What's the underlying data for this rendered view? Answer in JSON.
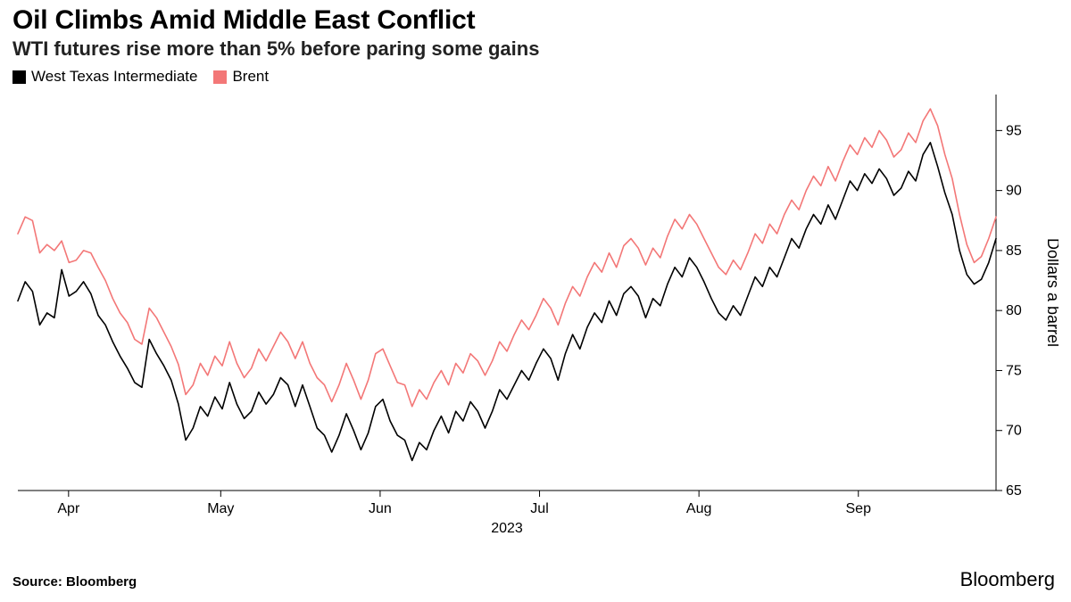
{
  "title": "Oil Climbs Amid Middle East Conflict",
  "subtitle": "WTI futures rise more than 5% before paring some gains",
  "source_label": "Source: Bloomberg",
  "brand": "Bloomberg",
  "legend": {
    "items": [
      {
        "label": "West Texas Intermediate",
        "color": "#000000"
      },
      {
        "label": "Brent",
        "color": "#f37777"
      }
    ]
  },
  "chart": {
    "type": "line",
    "background_color": "#ffffff",
    "axis_color": "#000000",
    "tick_length": 7,
    "y_axis_side": "right",
    "y_axis_title": "Dollars a barrel",
    "ylim": [
      65,
      98
    ],
    "yticks": [
      65,
      70,
      75,
      80,
      85,
      90,
      95
    ],
    "xlim": [
      0,
      135
    ],
    "xticks": [
      {
        "pos": 7,
        "label": "Apr"
      },
      {
        "pos": 28,
        "label": "May"
      },
      {
        "pos": 50,
        "label": "Jun"
      },
      {
        "pos": 72,
        "label": "Jul"
      },
      {
        "pos": 94,
        "label": "Aug"
      },
      {
        "pos": 116,
        "label": "Sep"
      }
    ],
    "x_axis_year": "2023",
    "line_width": 1.6,
    "axis_fontsize": 16,
    "title_fontsize": 30,
    "subtitle_fontsize": 22,
    "series": [
      {
        "name": "Brent",
        "color": "#f37777",
        "values": [
          86.4,
          87.8,
          87.5,
          84.8,
          85.5,
          85.0,
          85.8,
          84.0,
          84.2,
          85.0,
          84.8,
          83.6,
          82.5,
          81.0,
          79.8,
          79.0,
          77.6,
          77.2,
          80.2,
          79.4,
          78.2,
          77.0,
          75.5,
          73.0,
          73.8,
          75.6,
          74.6,
          76.2,
          75.4,
          77.4,
          75.6,
          74.4,
          75.2,
          76.8,
          75.8,
          77.0,
          78.2,
          77.4,
          76.0,
          77.4,
          75.6,
          74.4,
          73.8,
          72.4,
          73.8,
          75.6,
          74.2,
          72.6,
          74.2,
          76.4,
          76.8,
          75.4,
          74.0,
          73.8,
          72.0,
          73.4,
          72.6,
          74.0,
          75.0,
          73.8,
          75.6,
          74.8,
          76.4,
          75.8,
          74.6,
          75.8,
          77.4,
          76.6,
          78.0,
          79.2,
          78.4,
          79.6,
          81.0,
          80.2,
          78.8,
          80.6,
          82.0,
          81.2,
          82.8,
          84.0,
          83.2,
          84.8,
          83.6,
          85.4,
          86.0,
          85.2,
          83.8,
          85.2,
          84.4,
          86.2,
          87.6,
          86.8,
          88.0,
          87.2,
          86.0,
          84.8,
          83.6,
          83.0,
          84.2,
          83.4,
          84.8,
          86.4,
          85.6,
          87.2,
          86.4,
          88.0,
          89.2,
          88.4,
          90.0,
          91.2,
          90.4,
          92.0,
          90.8,
          92.4,
          93.8,
          93.0,
          94.4,
          93.6,
          95.0,
          94.2,
          92.8,
          93.4,
          94.8,
          94.0,
          95.8,
          96.8,
          95.4,
          93.0,
          91.0,
          88.0,
          85.5,
          84.0,
          84.5,
          86.0,
          87.8
        ]
      },
      {
        "name": "West Texas Intermediate",
        "color": "#000000",
        "values": [
          80.8,
          82.4,
          81.6,
          78.8,
          79.8,
          79.4,
          83.4,
          81.2,
          81.6,
          82.4,
          81.4,
          79.6,
          78.8,
          77.4,
          76.2,
          75.2,
          74.0,
          73.6,
          77.6,
          76.4,
          75.4,
          74.2,
          72.2,
          69.2,
          70.2,
          72.0,
          71.2,
          72.8,
          71.8,
          74.0,
          72.2,
          71.0,
          71.6,
          73.2,
          72.2,
          73.0,
          74.4,
          73.8,
          72.0,
          73.8,
          72.0,
          70.2,
          69.6,
          68.2,
          69.6,
          71.4,
          70.0,
          68.4,
          69.8,
          72.0,
          72.6,
          70.8,
          69.6,
          69.2,
          67.5,
          69.0,
          68.4,
          70.0,
          71.2,
          69.8,
          71.6,
          70.8,
          72.4,
          71.6,
          70.2,
          71.6,
          73.4,
          72.6,
          73.8,
          75.0,
          74.2,
          75.6,
          76.8,
          76.0,
          74.2,
          76.4,
          78.0,
          76.8,
          78.6,
          79.8,
          79.0,
          80.8,
          79.6,
          81.4,
          82.0,
          81.2,
          79.4,
          81.0,
          80.4,
          82.2,
          83.6,
          82.8,
          84.4,
          83.6,
          82.4,
          81.0,
          79.8,
          79.2,
          80.4,
          79.6,
          81.2,
          82.8,
          82.0,
          83.6,
          82.8,
          84.4,
          86.0,
          85.2,
          86.8,
          88.0,
          87.2,
          88.8,
          87.6,
          89.2,
          90.8,
          90.0,
          91.4,
          90.6,
          91.8,
          91.0,
          89.6,
          90.2,
          91.6,
          90.8,
          93.0,
          94.0,
          92.0,
          89.8,
          88.0,
          85.0,
          83.0,
          82.2,
          82.6,
          84.0,
          86.0
        ]
      }
    ]
  }
}
